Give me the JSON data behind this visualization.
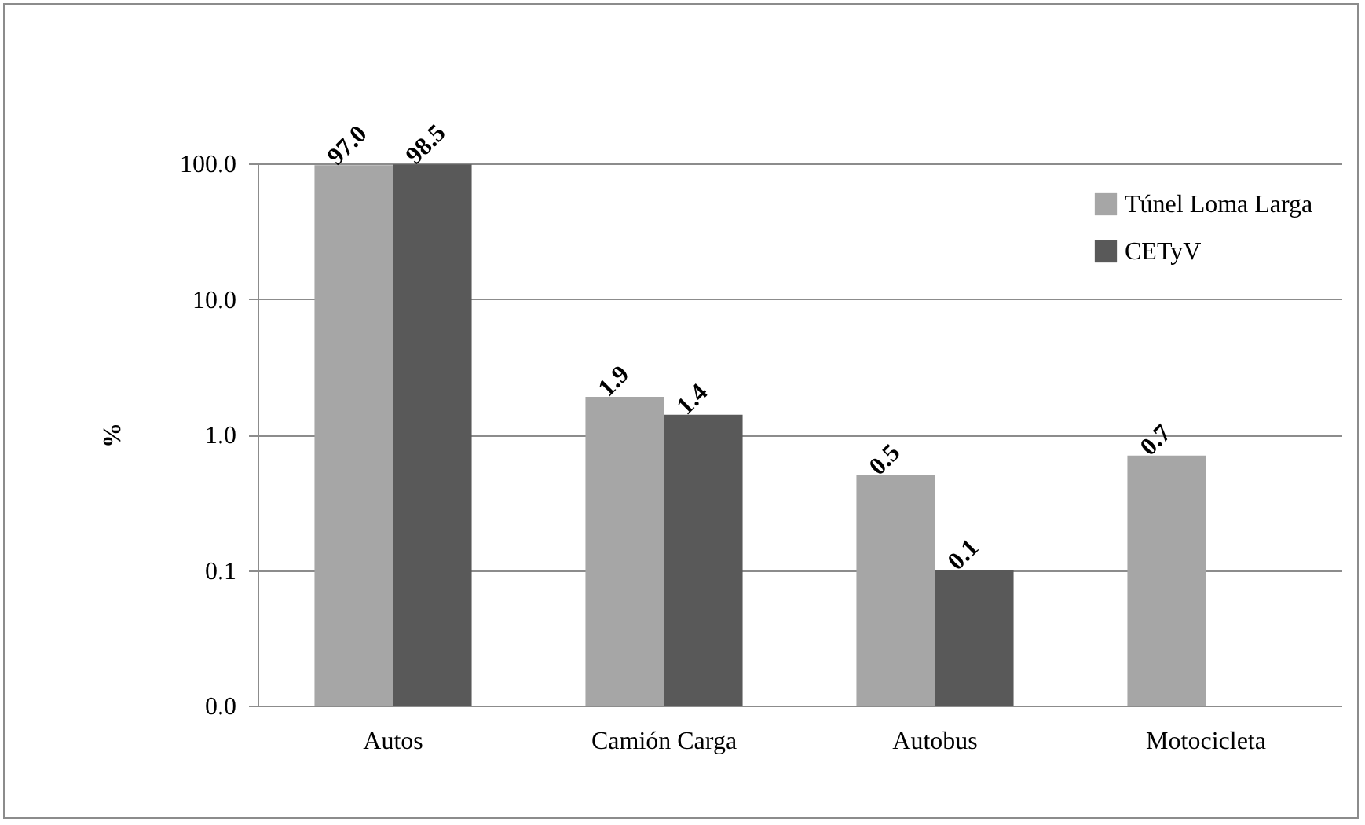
{
  "chart_data": {
    "type": "bar",
    "ylabel": "%",
    "categories": [
      "Autos",
      "Camión Carga",
      "Autobus",
      "Motocicleta"
    ],
    "series": [
      {
        "name": "Túnel Loma Larga",
        "color": "#a6a6a6",
        "values": [
          97.0,
          1.9,
          0.5,
          0.7
        ],
        "value_labels": [
          "97.0",
          "1.9",
          "0.5",
          "0.7"
        ]
      },
      {
        "name": "CETyV",
        "color": "#595959",
        "values": [
          98.5,
          1.4,
          0.1,
          null
        ],
        "value_labels": [
          "98.5",
          "1.4",
          "0.1",
          null
        ]
      }
    ],
    "log": "y",
    "ylim": [
      0.01,
      100
    ],
    "yticks": [
      {
        "value": 0.01,
        "label": "0.0"
      },
      {
        "value": 0.1,
        "label": "0.1"
      },
      {
        "value": 1,
        "label": "1.0"
      },
      {
        "value": 10,
        "label": "10.0"
      },
      {
        "value": 100,
        "label": "100.0"
      }
    ],
    "grid": "y",
    "legend": "top right"
  }
}
